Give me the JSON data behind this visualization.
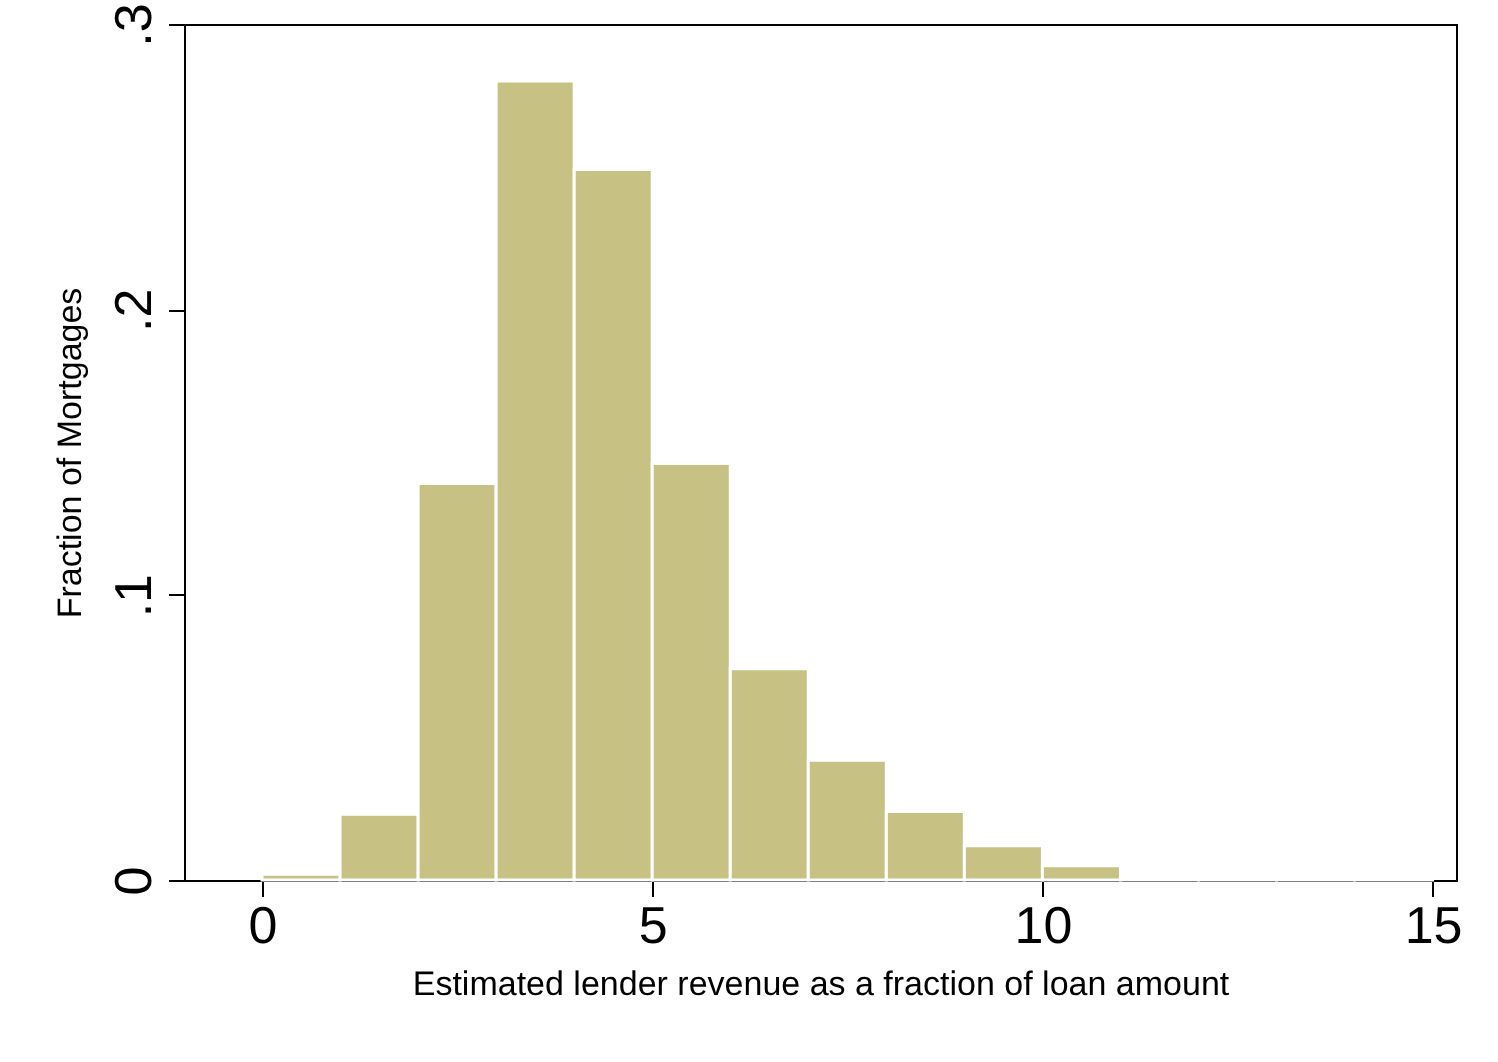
{
  "chart_data": {
    "type": "histogram",
    "xlabel": "Estimated lender revenue as a fraction of loan amount",
    "ylabel": "Fraction of Mortgages",
    "bins": [
      0,
      1,
      2,
      3,
      4,
      5,
      6,
      7,
      8,
      9,
      10,
      11,
      12,
      13,
      14,
      15
    ],
    "values": [
      0.002,
      0.023,
      0.139,
      0.28,
      0.249,
      0.146,
      0.074,
      0.042,
      0.024,
      0.012,
      0.005,
      0.001,
      0.001,
      0.001,
      0.001
    ],
    "color": "#c8c184",
    "xlim": [
      -1,
      15.3
    ],
    "xticks": [
      0,
      5,
      10,
      15
    ],
    "ylim": [
      0,
      0.3
    ],
    "yticks": [
      {
        "value": 0,
        "label": "0"
      },
      {
        "value": 0.1,
        "label": ".1"
      },
      {
        "value": 0.2,
        "label": ".2"
      },
      {
        "value": 0.3,
        "label": ".3"
      }
    ],
    "grid": false
  }
}
